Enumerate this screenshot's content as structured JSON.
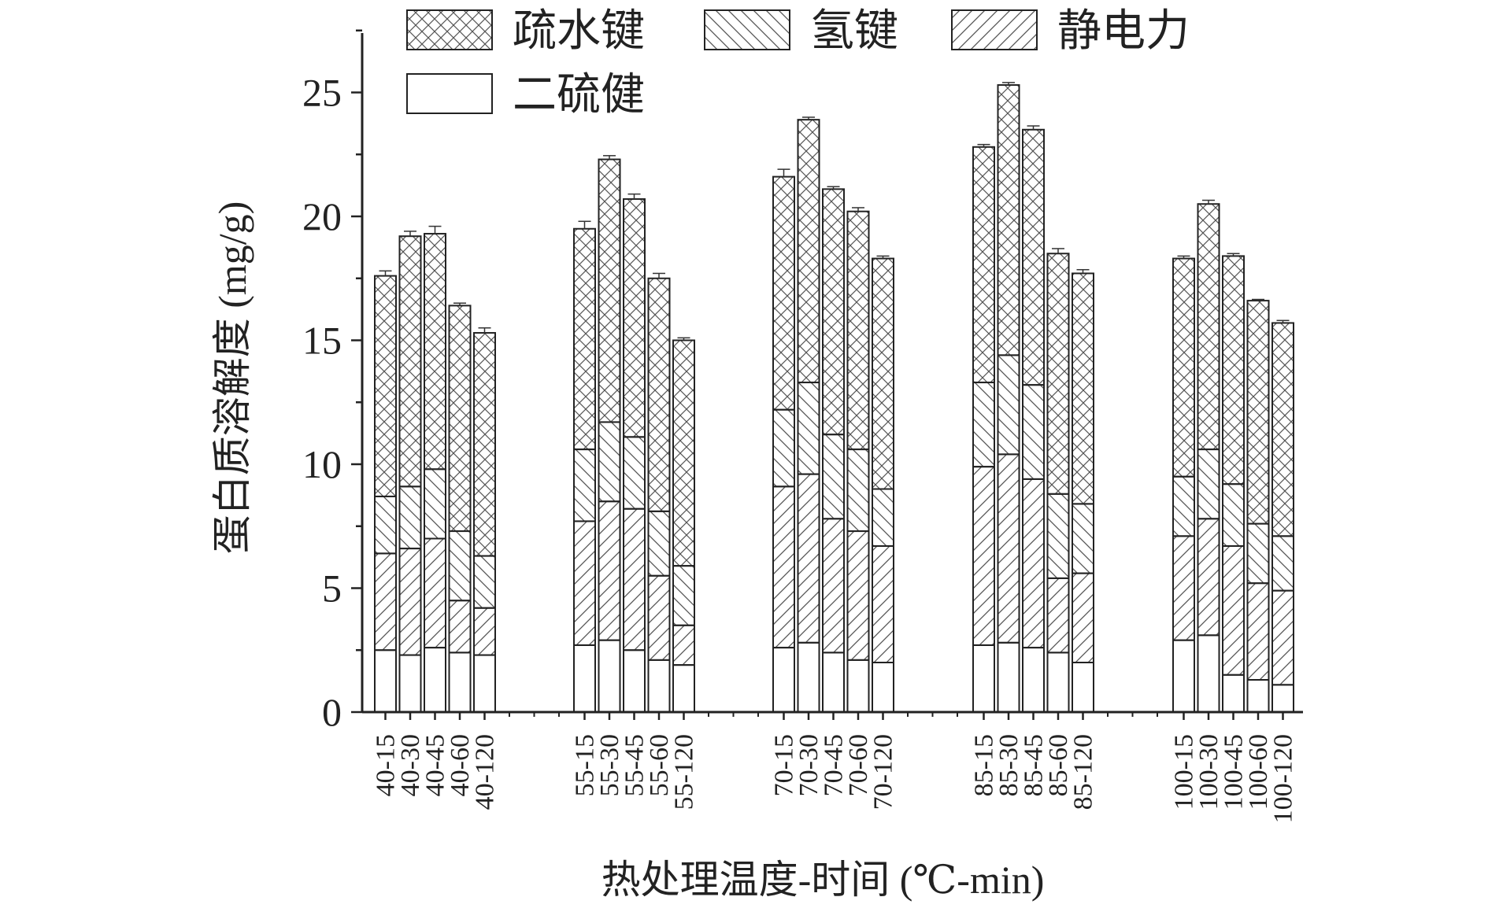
{
  "chart_data": {
    "type": "bar",
    "stacked": true,
    "title": "",
    "xlabel": "热处理温度-时间 (℃-min)",
    "ylabel": "蛋白质溶解度 (mg/g)",
    "ylim": [
      0,
      27.5
    ],
    "yticks": [
      0,
      5,
      10,
      15,
      20,
      25
    ],
    "grid": false,
    "legend_position": "top",
    "groups": [
      [
        "40-15",
        "40-30",
        "40-45",
        "40-60",
        "40-120"
      ],
      [
        "55-15",
        "55-30",
        "55-45",
        "55-60",
        "55-120"
      ],
      [
        "70-15",
        "70-30",
        "70-45",
        "70-60",
        "70-120"
      ],
      [
        "85-15",
        "85-30",
        "85-45",
        "85-60",
        "85-120"
      ],
      [
        "100-15",
        "100-30",
        "100-45",
        "100-60",
        "100-120"
      ]
    ],
    "categories": [
      "40-15",
      "40-30",
      "40-45",
      "40-60",
      "40-120",
      "55-15",
      "55-30",
      "55-45",
      "55-60",
      "55-120",
      "70-15",
      "70-30",
      "70-45",
      "70-60",
      "70-120",
      "85-15",
      "85-30",
      "85-45",
      "85-60",
      "85-120",
      "100-15",
      "100-30",
      "100-45",
      "100-60",
      "100-120"
    ],
    "series": [
      {
        "name": "二硫健",
        "pattern": "none",
        "values": [
          2.5,
          2.3,
          2.6,
          2.4,
          2.3,
          2.7,
          2.9,
          2.5,
          2.1,
          1.9,
          2.6,
          2.8,
          2.4,
          2.1,
          2.0,
          2.7,
          2.8,
          2.6,
          2.4,
          2.0,
          2.9,
          3.1,
          1.5,
          1.3,
          1.1
        ]
      },
      {
        "name": "静电力",
        "pattern": "forward",
        "values": [
          3.9,
          4.3,
          4.4,
          2.1,
          1.9,
          5.0,
          5.6,
          5.7,
          3.4,
          1.6,
          6.5,
          6.8,
          5.4,
          5.2,
          4.7,
          7.2,
          7.6,
          6.8,
          3.0,
          3.6,
          4.2,
          4.7,
          5.2,
          3.9,
          3.8
        ]
      },
      {
        "name": "氢键",
        "pattern": "backward",
        "values": [
          2.3,
          2.5,
          2.8,
          2.8,
          2.1,
          2.9,
          3.2,
          2.9,
          2.6,
          2.4,
          3.1,
          3.7,
          3.4,
          3.3,
          2.3,
          3.4,
          4.0,
          3.8,
          3.4,
          2.8,
          2.4,
          2.8,
          2.5,
          2.4,
          2.2
        ]
      },
      {
        "name": "疏水键",
        "pattern": "cross",
        "values": [
          8.9,
          10.1,
          9.5,
          9.1,
          9.0,
          8.9,
          10.6,
          9.6,
          9.4,
          9.1,
          9.4,
          10.6,
          9.9,
          9.6,
          9.3,
          9.5,
          10.9,
          10.3,
          9.7,
          9.3,
          8.8,
          9.9,
          9.2,
          9.0,
          8.6
        ]
      }
    ],
    "error_bars": [
      0.2,
      0.2,
      0.3,
      0.1,
      0.2,
      0.3,
      0.15,
      0.2,
      0.2,
      0.1,
      0.3,
      0.1,
      0.1,
      0.15,
      0.1,
      0.1,
      0.1,
      0.15,
      0.2,
      0.15,
      0.1,
      0.15,
      0.1,
      0.05,
      0.1
    ],
    "legend": [
      {
        "name": "疏水键",
        "pattern": "cross"
      },
      {
        "name": "氢键",
        "pattern": "backward"
      },
      {
        "name": "静电力",
        "pattern": "forward"
      },
      {
        "name": "二硫健",
        "pattern": "none"
      }
    ]
  }
}
